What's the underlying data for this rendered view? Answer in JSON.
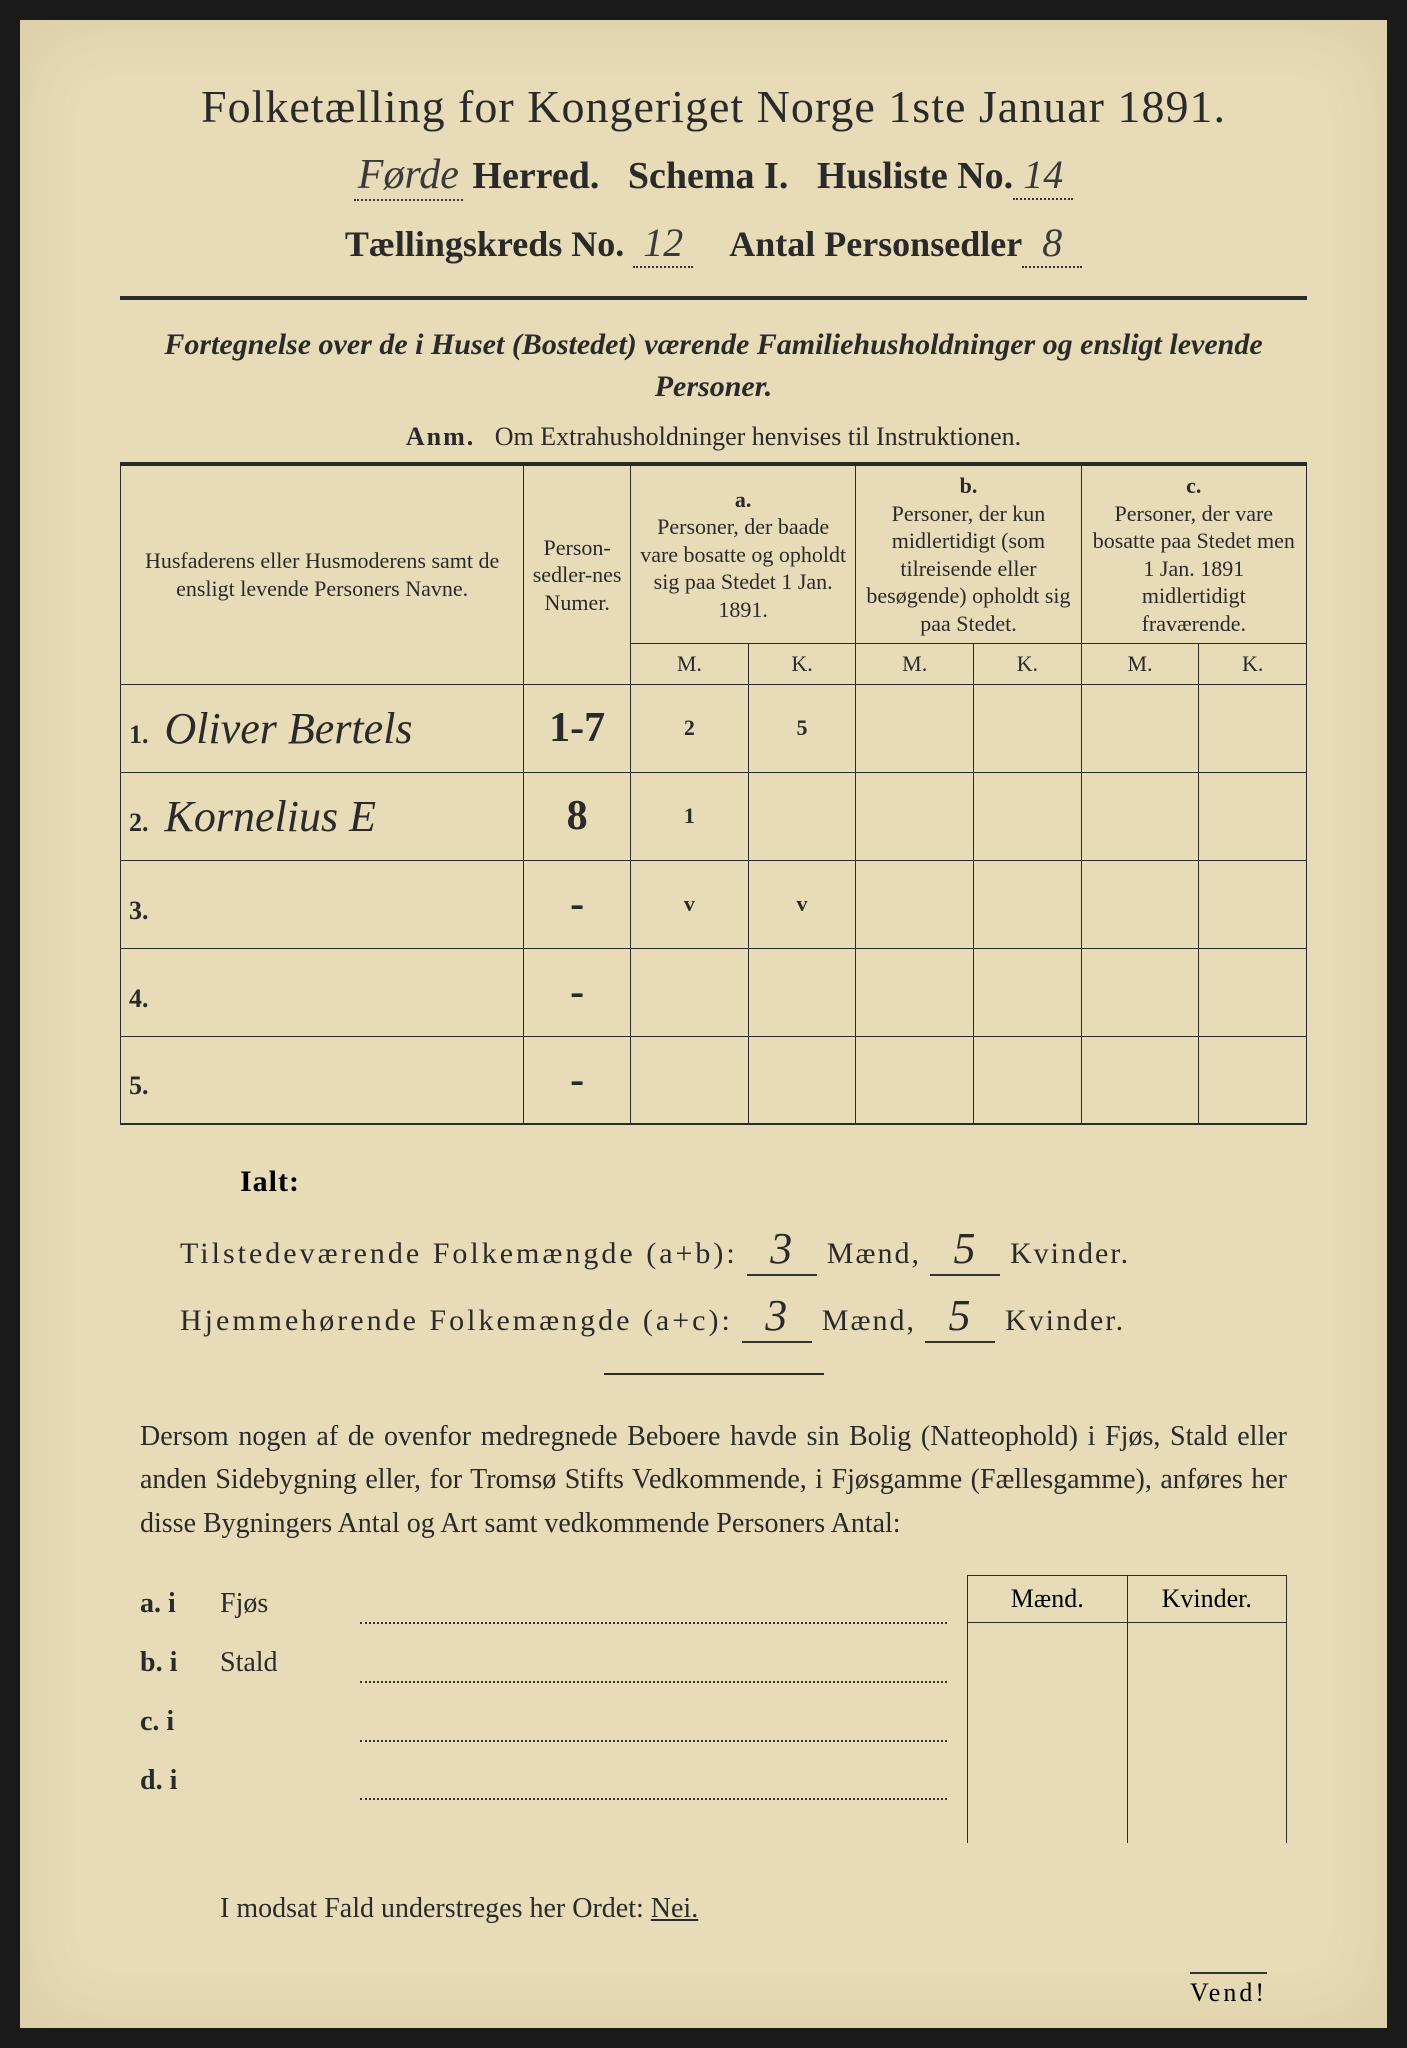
{
  "colors": {
    "paper": "#e8dcb8",
    "ink": "#2a2a2a",
    "border": "#2a2a2a",
    "background": "#1a1a1a"
  },
  "title": "Folketælling for Kongeriget Norge 1ste Januar 1891.",
  "header": {
    "herred_value": "Førde",
    "herred_label": "Herred.",
    "schema_label": "Schema I.",
    "husliste_label": "Husliste No.",
    "husliste_value": "14",
    "kreds_label": "Tællingskreds No.",
    "kreds_value": "12",
    "antal_label": "Antal Personsedler",
    "antal_value": "8"
  },
  "subtitle": "Fortegnelse over de i Huset (Bostedet) værende Familiehusholdninger og ensligt levende Personer.",
  "anm": {
    "prefix": "Anm.",
    "text": "Om Extrahusholdninger henvises til Instruktionen."
  },
  "tableHeaders": {
    "name": "Husfaderens eller Husmoderens samt de ensligt levende Personers Navne.",
    "num": "Person-sedler-nes Numer.",
    "a_tag": "a.",
    "a": "Personer, der baade vare bosatte og opholdt sig paa Stedet 1 Jan. 1891.",
    "b_tag": "b.",
    "b": "Personer, der kun midlertidigt (som tilreisende eller besøgende) opholdt sig paa Stedet.",
    "c_tag": "c.",
    "c": "Personer, der vare bosatte paa Stedet men 1 Jan. 1891 midlertidigt fraværende.",
    "M": "M.",
    "K": "K."
  },
  "rows": [
    {
      "n": "1.",
      "name": "Oliver Bertels",
      "num": "1-7",
      "aM": "2",
      "aK": "5",
      "bM": "",
      "bK": "",
      "cM": "",
      "cK": ""
    },
    {
      "n": "2.",
      "name": "Kornelius E",
      "num": "8",
      "aM": "1",
      "aK": "",
      "bM": "",
      "bK": "",
      "cM": "",
      "cK": ""
    },
    {
      "n": "3.",
      "name": "",
      "num": "-",
      "aM": "v",
      "aK": "v",
      "bM": "",
      "bK": "",
      "cM": "",
      "cK": ""
    },
    {
      "n": "4.",
      "name": "",
      "num": "-",
      "aM": "",
      "aK": "",
      "bM": "",
      "bK": "",
      "cM": "",
      "cK": ""
    },
    {
      "n": "5.",
      "name": "",
      "num": "-",
      "aM": "",
      "aK": "",
      "bM": "",
      "bK": "",
      "cM": "",
      "cK": ""
    }
  ],
  "ialt": "Ialt:",
  "totals": {
    "line1_label": "Tilstedeværende Folkemængde (a+b):",
    "line1_m": "3",
    "line1_k": "5",
    "line2_label": "Hjemmehørende Folkemængde (a+c):",
    "line2_m": "3",
    "line2_k": "5",
    "maend": "Mænd,",
    "kvinder": "Kvinder."
  },
  "paragraph": "Dersom nogen af de ovenfor medregnede Beboere havde sin Bolig (Natteophold) i Fjøs, Stald eller anden Sidebygning eller, for Tromsø Stifts Vedkommende, i Fjøsgamme (Fællesgamme), anføres her disse Bygningers Antal og Art samt vedkommende Personers Antal:",
  "buildings": {
    "a": {
      "lab": "a.  i",
      "txt": "Fjøs"
    },
    "b": {
      "lab": "b.  i",
      "txt": "Stald"
    },
    "c": {
      "lab": "c.  i",
      "txt": ""
    },
    "d": {
      "lab": "d.  i",
      "txt": ""
    },
    "maend": "Mænd.",
    "kvinder": "Kvinder."
  },
  "footer": {
    "text": "I modsat Fald understreges her Ordet:",
    "nei": "Nei."
  },
  "vend": "Vend!"
}
